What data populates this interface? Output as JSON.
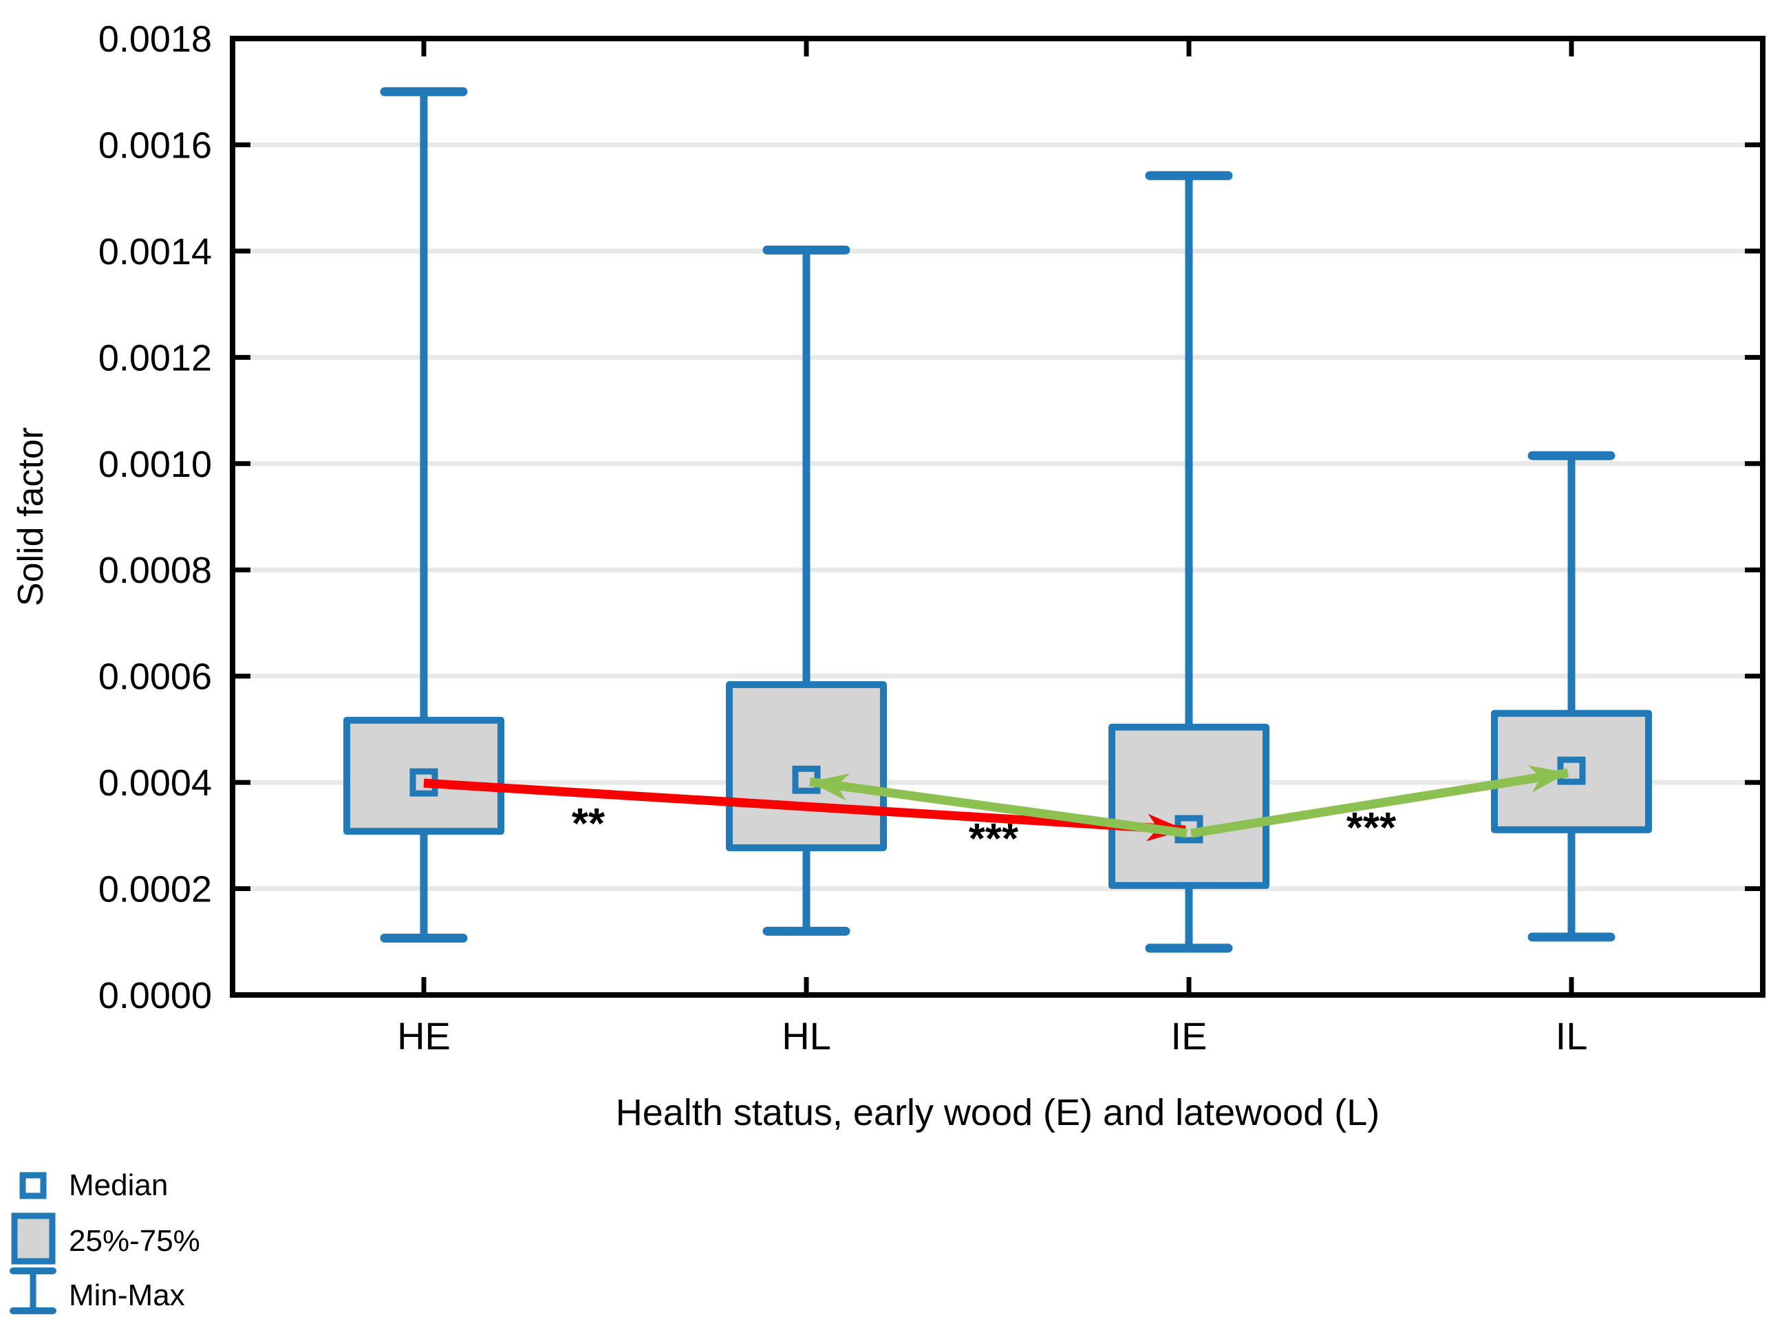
{
  "colors": {
    "blue": "#2179B8",
    "box_fill": "#D4D4D4",
    "gridline": "#E8E8E8",
    "axis": "#000000",
    "arrow_red": "#F80000",
    "arrow_green": "#8CC152",
    "text": "#000000",
    "background": "#FFFFFF"
  },
  "chart_data": {
    "type": "boxplot",
    "title": "",
    "xlabel": "Health status, early wood (E) and latewood (L)",
    "ylabel": "Solid factor",
    "categories": [
      "HE",
      "HL",
      "IE",
      "IL"
    ],
    "ylim": [
      0.0,
      0.0018
    ],
    "ytick_step": 0.0002,
    "ytick_labels": [
      "0.0000",
      "0.0002",
      "0.0004",
      "0.0006",
      "0.0008",
      "0.0010",
      "0.0012",
      "0.0014",
      "0.0016",
      "0.0018"
    ],
    "grid": "horizontal",
    "legend_position": "bottom-left",
    "series": [
      {
        "category": "HE",
        "min": 0.000107,
        "q1": 0.000308,
        "median": 0.0004,
        "q3": 0.000517,
        "max": 0.0017
      },
      {
        "category": "HL",
        "min": 0.00012,
        "q1": 0.000277,
        "median": 0.000405,
        "q3": 0.000584,
        "max": 0.001402
      },
      {
        "category": "IE",
        "min": 8.8e-05,
        "q1": 0.000206,
        "median": 0.000312,
        "q3": 0.000504,
        "max": 0.001542
      },
      {
        "category": "IL",
        "min": 0.000109,
        "q1": 0.000311,
        "median": 0.000422,
        "q3": 0.00053,
        "max": 0.001015
      }
    ],
    "legend": [
      {
        "marker": "median-square",
        "label": "Median"
      },
      {
        "marker": "iqr-box",
        "label": "25%-75%"
      },
      {
        "marker": "minmax-whisker",
        "label": "Min-Max"
      }
    ],
    "annotations": {
      "arrows": [
        {
          "from": "HE",
          "to": "IE",
          "color": "red"
        },
        {
          "from": "IE",
          "to": "HL",
          "color": "green"
        },
        {
          "from": "IE",
          "to": "IL",
          "color": "green"
        }
      ],
      "significance": [
        {
          "label": "**",
          "between": "HE-HL",
          "x": 855,
          "y": 1218
        },
        {
          "label": "***",
          "between": "HL-IE",
          "x": 1444,
          "y": 1240
        },
        {
          "label": "***",
          "between": "IE-IL",
          "x": 1993,
          "y": 1224
        }
      ]
    }
  }
}
